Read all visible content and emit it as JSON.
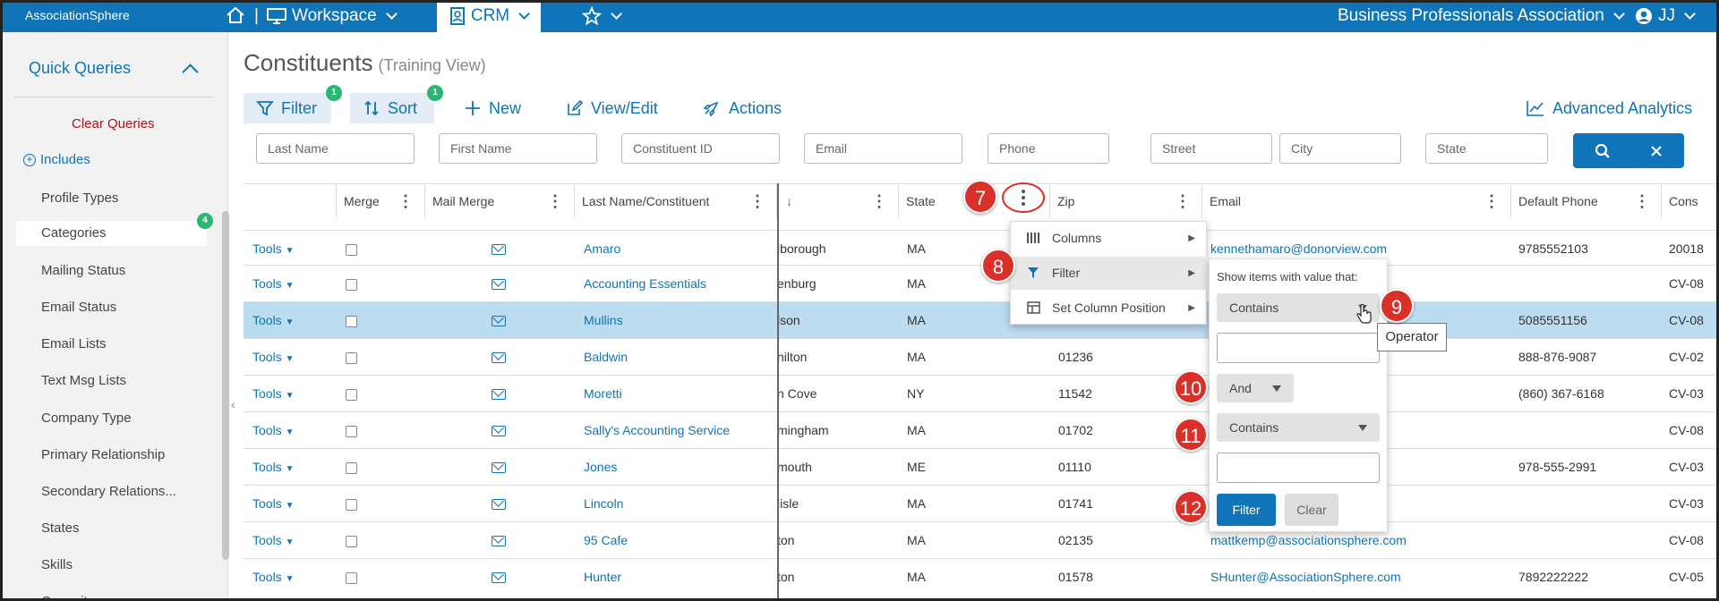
{
  "topbar": {
    "logo": "AssociationSphere",
    "workspace": "Workspace",
    "crm": "CRM",
    "org": "Business Professionals Association",
    "user": "JJ",
    "separator": "|"
  },
  "sidebar": {
    "header": "Quick Queries",
    "clear": "Clear Queries",
    "includes": "Includes",
    "items": [
      "Profile Types",
      "Categories",
      "Mailing Status",
      "Email Status",
      "Email Lists",
      "Text Msg Lists",
      "Company Type",
      "Primary Relationship",
      "Secondary Relations...",
      "States",
      "Skills",
      "Commit..."
    ],
    "categories_badge": "4"
  },
  "page": {
    "title": "Constituents",
    "subtitle": "(Training View)"
  },
  "toolbar": {
    "filter": "Filter",
    "filter_badge": "1",
    "sort": "Sort",
    "sort_badge": "1",
    "new": "New",
    "view_edit": "View/Edit",
    "actions": "Actions",
    "advanced": "Advanced Analytics"
  },
  "filters": [
    "Last Name",
    "First Name",
    "Constituent ID",
    "Email",
    "Phone",
    "Street",
    "City",
    "State"
  ],
  "columns": {
    "merge": "Merge",
    "mail_merge": "Mail Merge",
    "last_name": "Last Name/Constituent",
    "city_sort": "↓",
    "state": "State",
    "zip": "Zip",
    "email": "Email",
    "phone": "Default Phone",
    "cons": "Cons"
  },
  "rows": [
    {
      "tools": "Tools",
      "name": "Amaro",
      "city": "lborough",
      "state": "MA",
      "zip": "",
      "email": "kennethamaro@donorview.com",
      "phone": "9785552103",
      "cons": "20018"
    },
    {
      "tools": "Tools",
      "name": "Accounting Essentials",
      "city": "enburg",
      "state": "MA",
      "zip": "",
      "email": "",
      "phone": "",
      "cons": "CV-08"
    },
    {
      "tools": "Tools",
      "name": "Mullins",
      "city": "lson",
      "state": "MA",
      "zip": "",
      "email": "",
      "phone": "5085551156",
      "cons": "CV-08"
    },
    {
      "tools": "Tools",
      "name": "Baldwin",
      "city": "nilton",
      "state": "MA",
      "zip": "01236",
      "email": "",
      "phone": "888-876-9087",
      "cons": "CV-02"
    },
    {
      "tools": "Tools",
      "name": "Moretti",
      "city": "n Cove",
      "state": "NY",
      "zip": "11542",
      "email": "",
      "phone": "(860) 367-6168",
      "cons": "CV-03"
    },
    {
      "tools": "Tools",
      "name": "Sally's Accounting Service",
      "city": "mingham",
      "state": "MA",
      "zip": "01702",
      "email": "",
      "phone": "",
      "cons": "CV-08"
    },
    {
      "tools": "Tools",
      "name": "Jones",
      "city": "mouth",
      "state": "ME",
      "zip": "01110",
      "email": "",
      "phone": "978-555-2991",
      "cons": "CV-03"
    },
    {
      "tools": "Tools",
      "name": "Lincoln",
      "city": "lisle",
      "state": "MA",
      "zip": "01741",
      "email": "",
      "phone": "",
      "cons": "CV-03"
    },
    {
      "tools": "Tools",
      "name": "95 Cafe",
      "city": "ton",
      "state": "MA",
      "zip": "02135",
      "email": "mattkemp@associationsphere.com",
      "phone": "",
      "cons": "CV-08"
    },
    {
      "tools": "Tools",
      "name": "Hunter",
      "city": "ton",
      "state": "MA",
      "zip": "01578",
      "email": "SHunter@AssociationSphere.com",
      "phone": "7892222222",
      "cons": "CV-05"
    }
  ],
  "column_menu": {
    "columns": "Columns",
    "filter": "Filter",
    "set_position": "Set Column Position"
  },
  "filter_popup": {
    "heading": "Show items with value that:",
    "operator1": "Contains",
    "logic": "And",
    "operator2": "Contains",
    "filter_btn": "Filter",
    "clear_btn": "Clear"
  },
  "tooltip": "Operator",
  "callouts": [
    "7",
    "8",
    "9",
    "10",
    "11",
    "12"
  ],
  "colors": {
    "brand": "#0f74b8",
    "callout": "#d9302a",
    "badge": "#2bb673"
  }
}
